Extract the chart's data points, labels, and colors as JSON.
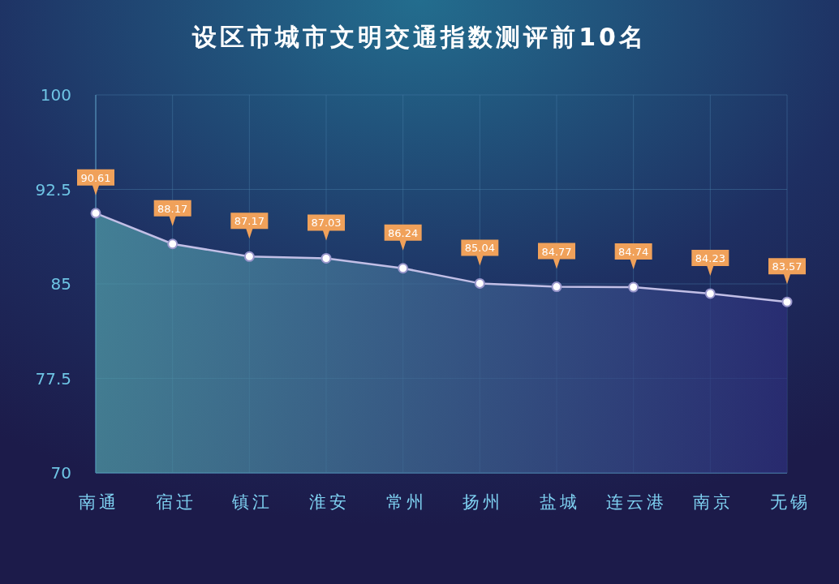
{
  "chart_data": {
    "type": "area",
    "title": "设区市城市文明交通指数测评前10名",
    "categories": [
      "南通",
      "宿迁",
      "镇江",
      "淮安",
      "常州",
      "扬州",
      "盐城",
      "连云港",
      "南京",
      "无锡"
    ],
    "values": [
      90.61,
      88.17,
      87.17,
      87.03,
      86.24,
      85.04,
      84.77,
      84.74,
      84.23,
      83.57
    ],
    "color": "#c2bfe6",
    "ylim": [
      70,
      100
    ],
    "yticks": [
      70,
      77.5,
      85,
      92.5,
      100
    ],
    "grid": true,
    "marker": "circle",
    "data_labels": true
  }
}
